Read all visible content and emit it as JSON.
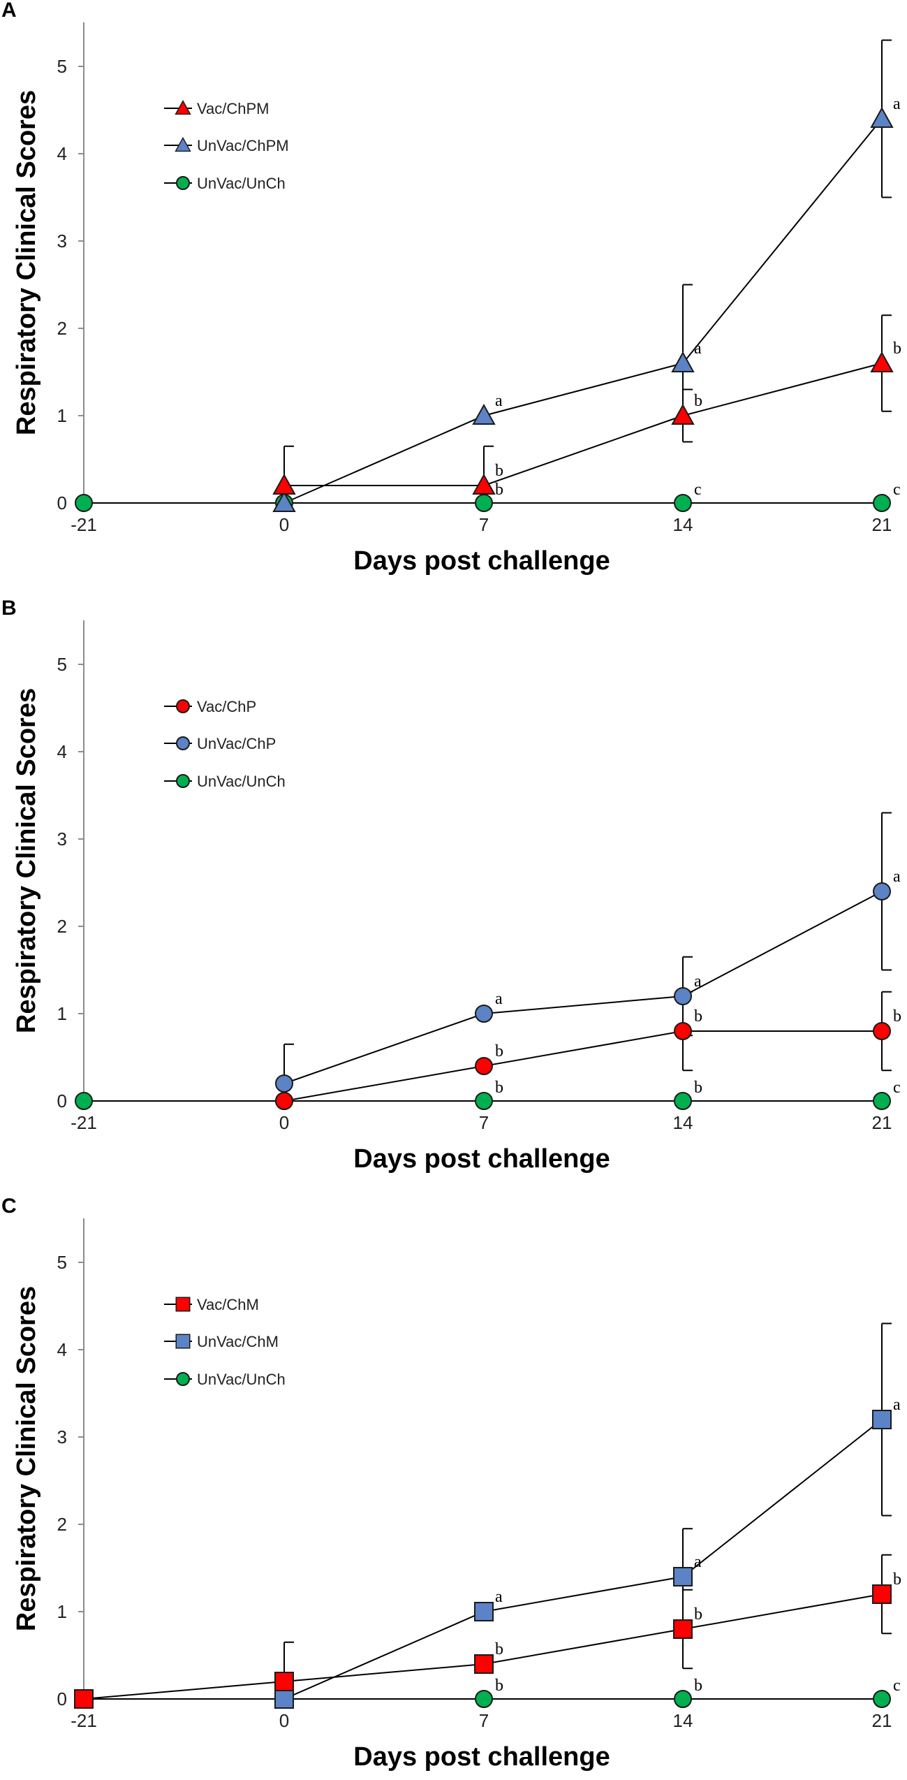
{
  "chart_data": [
    {
      "panel": "A",
      "type": "line",
      "xlabel": "Days post challenge",
      "ylabel": "Respiratory Clinical Scores",
      "x": [
        -21,
        0,
        7,
        14,
        21
      ],
      "x_ticks": [
        "-21",
        "0",
        "7",
        "14",
        "21"
      ],
      "y_ticks": [
        "0",
        "1",
        "2",
        "3",
        "4",
        "5"
      ],
      "ylim": [
        0,
        5.5
      ],
      "grid": false,
      "legend_position": "top-left",
      "series": [
        {
          "name": "Vac/ChPM",
          "marker": "triangle",
          "color": "#ff0000",
          "values": [
            null,
            0.2,
            0.2,
            1.0,
            1.6
          ],
          "errors": [
            null,
            0.45,
            0.45,
            0.3,
            0.55
          ],
          "labels": [
            null,
            null,
            "b",
            "b",
            "b"
          ]
        },
        {
          "name": "UnVac/ChPM",
          "marker": "triangle",
          "color": "#5b83c6",
          "values": [
            null,
            0,
            1.0,
            1.6,
            4.4
          ],
          "errors": [
            null,
            null,
            null,
            0.9,
            0.9
          ],
          "labels": [
            null,
            null,
            "a",
            "a",
            "a"
          ]
        },
        {
          "name": "UnVac/UnCh",
          "marker": "circle",
          "color": "#00b050",
          "values": [
            0,
            0,
            0,
            0,
            0
          ],
          "errors": [
            null,
            null,
            null,
            null,
            null
          ],
          "labels": [
            null,
            null,
            "b",
            "c",
            "c"
          ]
        }
      ]
    },
    {
      "panel": "B",
      "type": "line",
      "xlabel": "Days post challenge",
      "ylabel": "Respiratory Clinical Scores",
      "x": [
        -21,
        0,
        7,
        14,
        21
      ],
      "x_ticks": [
        "-21",
        "0",
        "7",
        "14",
        "21"
      ],
      "y_ticks": [
        "0",
        "1",
        "2",
        "3",
        "4",
        "5"
      ],
      "ylim": [
        0,
        5.5
      ],
      "grid": false,
      "legend_position": "top-left",
      "series": [
        {
          "name": "Vac/ChP",
          "marker": "circle",
          "color": "#ff0000",
          "values": [
            null,
            0,
            0.4,
            0.8,
            0.8
          ],
          "errors": [
            null,
            null,
            null,
            0.45,
            0.45
          ],
          "labels": [
            null,
            null,
            "b",
            "b",
            "b"
          ]
        },
        {
          "name": "UnVac/ChP",
          "marker": "circle",
          "color": "#5b83c6",
          "values": [
            null,
            0.2,
            1.0,
            1.2,
            2.4
          ],
          "errors": [
            null,
            0.45,
            null,
            0.45,
            0.9
          ],
          "labels": [
            null,
            null,
            "a",
            "a",
            "a"
          ]
        },
        {
          "name": "UnVac/UnCh",
          "marker": "circle",
          "color": "#00b050",
          "values": [
            0,
            0,
            0,
            0,
            0
          ],
          "errors": [
            null,
            null,
            null,
            null,
            null
          ],
          "labels": [
            null,
            null,
            "b",
            "b",
            "c"
          ]
        }
      ]
    },
    {
      "panel": "C",
      "type": "line",
      "xlabel": "Days post challenge",
      "ylabel": "Respiratory Clinical Scores",
      "x": [
        -21,
        0,
        7,
        14,
        21
      ],
      "x_ticks": [
        "-21",
        "0",
        "7",
        "14",
        "21"
      ],
      "y_ticks": [
        "0",
        "1",
        "2",
        "3",
        "4",
        "5"
      ],
      "ylim": [
        0,
        5.5
      ],
      "grid": false,
      "legend_position": "top-left",
      "series": [
        {
          "name": "Vac/ChM",
          "marker": "square",
          "color": "#ff0000",
          "values": [
            0,
            0.2,
            0.4,
            0.8,
            1.2
          ],
          "errors": [
            null,
            0.45,
            null,
            0.45,
            0.45
          ],
          "labels": [
            null,
            null,
            "b",
            "b",
            "b"
          ]
        },
        {
          "name": "UnVac/ChM",
          "marker": "square",
          "color": "#5b83c6",
          "values": [
            0,
            0,
            1.0,
            1.4,
            3.2
          ],
          "errors": [
            null,
            null,
            null,
            0.55,
            1.1
          ],
          "labels": [
            null,
            null,
            "a",
            "a",
            "a"
          ]
        },
        {
          "name": "UnVac/UnCh",
          "marker": "circle",
          "color": "#00b050",
          "values": [
            0,
            0,
            0,
            0,
            0
          ],
          "errors": [
            null,
            null,
            null,
            null,
            null
          ],
          "labels": [
            null,
            null,
            "b",
            "b",
            "c"
          ]
        }
      ]
    }
  ]
}
